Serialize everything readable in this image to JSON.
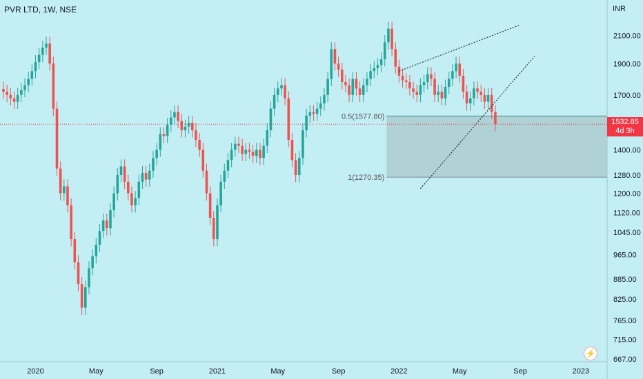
{
  "header": {
    "title": "PVR LTD, 1W, NSE"
  },
  "colors": {
    "background": "#c3eef4",
    "up": "#26a69a",
    "down": "#ef5350",
    "badge": "#f23645"
  },
  "price_badge": {
    "price": "1532.85",
    "countdown": "4d 3h"
  },
  "chart_data": {
    "type": "candlestick",
    "title": "PVR LTD, 1W, NSE",
    "ylabel": "INR",
    "y_scale": "log",
    "y_ticks": [
      "2100.00",
      "1900.00",
      "1700.00",
      "1532.85",
      "1400.00",
      "1280.00",
      "1200.00",
      "1120.00",
      "1045.00",
      "965.00",
      "885.00",
      "825.00",
      "765.00",
      "715.00",
      "667.00"
    ],
    "x_ticks": [
      "2020",
      "May",
      "Sep",
      "2021",
      "May",
      "Sep",
      "2022",
      "May",
      "Sep",
      "2023"
    ],
    "x_tick_index": [
      9,
      26,
      43,
      60,
      77,
      94,
      111,
      128,
      145,
      162
    ],
    "last_price": 1532.85,
    "close": [
      1720,
      1700,
      1680,
      1660,
      1700,
      1730,
      1760,
      1800,
      1850,
      1910,
      1960,
      2010,
      2040,
      1900,
      1620,
      1310,
      1200,
      1230,
      1150,
      1020,
      940,
      870,
      800,
      860,
      920,
      960,
      1000,
      1050,
      1090,
      1060,
      1130,
      1200,
      1280,
      1320,
      1250,
      1200,
      1150,
      1180,
      1250,
      1290,
      1260,
      1300,
      1360,
      1400,
      1480,
      1470,
      1530,
      1570,
      1600,
      1550,
      1500,
      1520,
      1540,
      1500,
      1450,
      1400,
      1300,
      1200,
      1100,
      1020,
      1150,
      1250,
      1300,
      1350,
      1400,
      1430,
      1420,
      1380,
      1400,
      1390,
      1370,
      1400,
      1360,
      1420,
      1500,
      1620,
      1700,
      1740,
      1760,
      1680,
      1450,
      1350,
      1280,
      1360,
      1500,
      1580,
      1600,
      1590,
      1620,
      1650,
      1700,
      1800,
      2000,
      1900,
      1860,
      1780,
      1760,
      1700,
      1800,
      1740,
      1700,
      1760,
      1800,
      1850,
      1870,
      1890,
      1930,
      2050,
      2150,
      2000,
      1880,
      1820,
      1790,
      1780,
      1740,
      1720,
      1700,
      1760,
      1780,
      1830,
      1800,
      1700,
      1720,
      1680,
      1750,
      1800,
      1850,
      1900,
      1820,
      1720,
      1650,
      1680,
      1740,
      1720,
      1700,
      1660,
      1700,
      1600,
      1532.85
    ],
    "annotations": {
      "fib_levels": [
        {
          "label": "0.5(1577.80)",
          "value": 1577.8
        },
        {
          "label": "1(1270.35)",
          "value": 1270.35
        }
      ],
      "trendline_top": {
        "from": [
          111,
          1850
        ],
        "to": [
          145,
          2180
        ]
      },
      "trendline_bottom": {
        "from": [
          117,
          1220
        ],
        "to": [
          149,
          1950
        ]
      }
    }
  },
  "tv_icon": "tradingview-logo-icon"
}
